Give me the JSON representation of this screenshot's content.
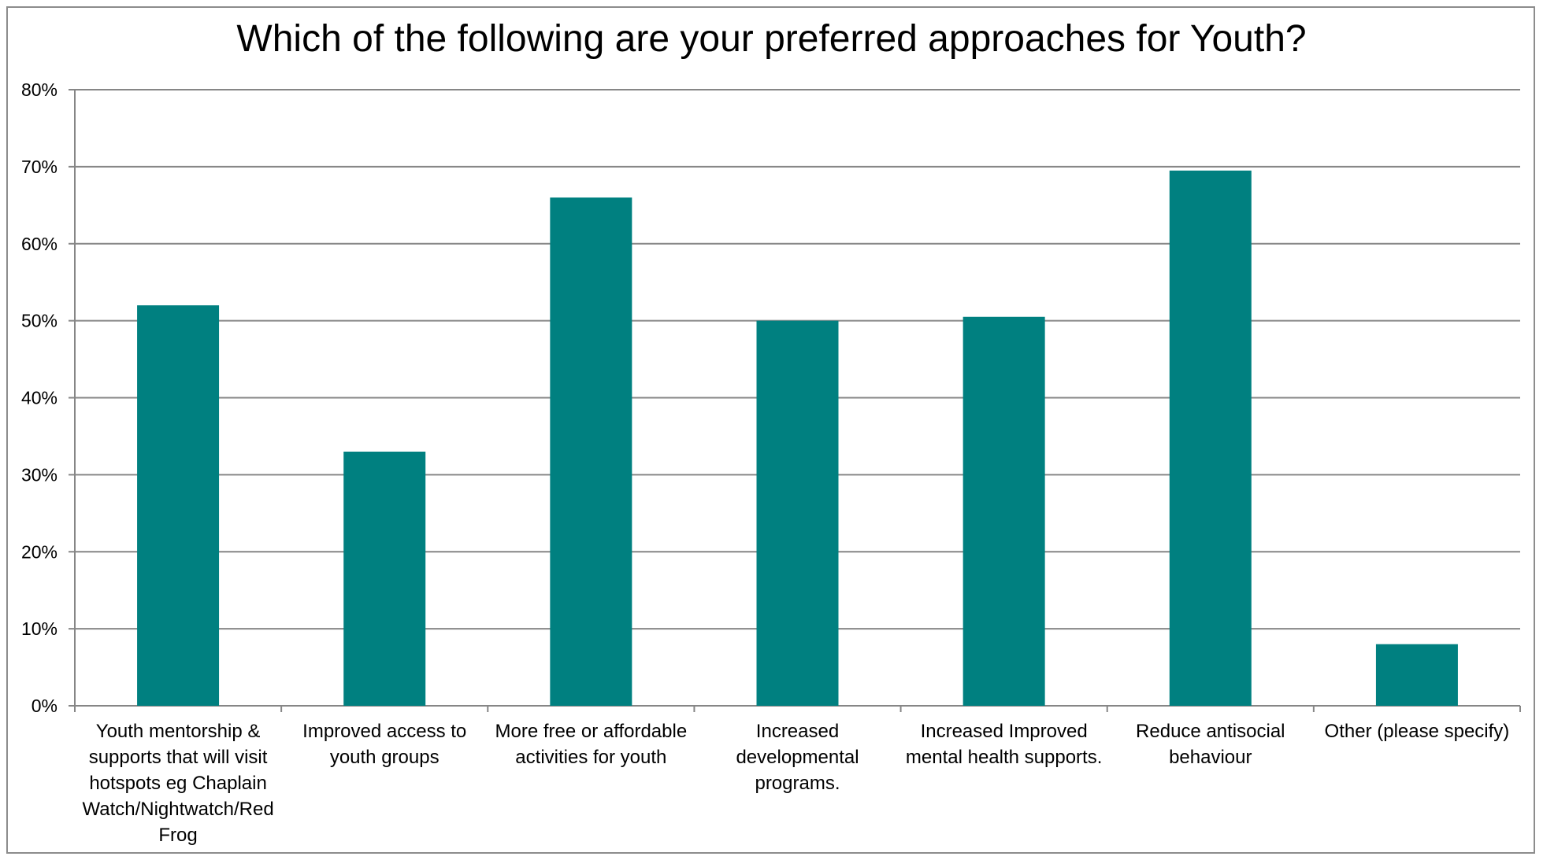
{
  "chart_data": {
    "type": "bar",
    "title": "Which of the following are your preferred approaches for Youth?",
    "categories": [
      "Youth mentorship & supports that will visit hotspots eg Chaplain Watch/Nightwatch/Red Frog",
      "Improved access to youth groups",
      "More free or affordable activities for youth",
      "Increased developmental programs.",
      "Increased Improved mental health supports.",
      "Reduce antisocial behaviour",
      "Other (please specify)"
    ],
    "values": [
      52,
      33,
      66,
      50,
      50.5,
      69.5,
      8
    ],
    "ylim": [
      0,
      80
    ],
    "yticks": [
      "0%",
      "10%",
      "20%",
      "30%",
      "40%",
      "50%",
      "60%",
      "70%",
      "80%"
    ],
    "xlabel": "",
    "ylabel": "",
    "grid": true,
    "legend": "none",
    "bar_color": "#008080"
  }
}
